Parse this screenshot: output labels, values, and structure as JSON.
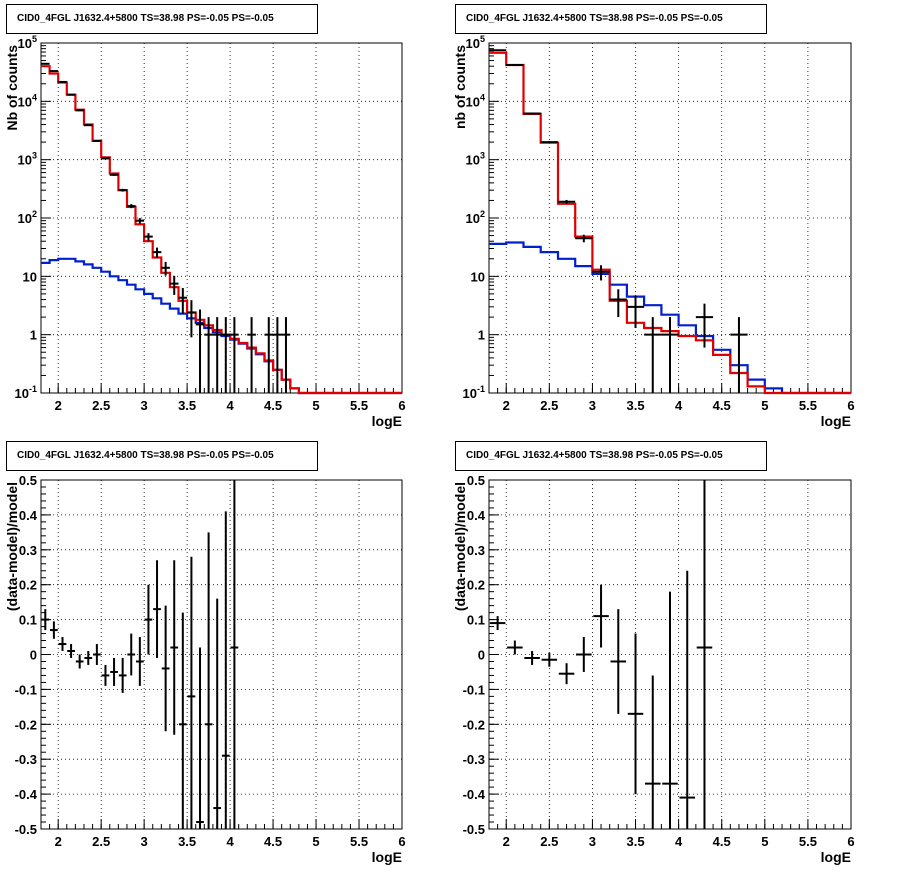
{
  "colors": {
    "data": "#000000",
    "total_model": "#e00000",
    "background_model": "#0020d0",
    "grid": "#000000"
  },
  "chart_data": [
    {
      "type": "line",
      "title": "CID0_4FGL J1632.4+5800 TS=38.98 PS=-0.05 PS=-0.05",
      "xlabel": "logE",
      "ylabel": "Nb of counts",
      "yscale": "log",
      "xlim": [
        1.8,
        6.0
      ],
      "ylim": [
        0.1,
        100000
      ],
      "xticks": [
        "2",
        "2.5",
        "3",
        "3.5",
        "4",
        "4.5",
        "5",
        "5.5",
        "6"
      ],
      "yticks": [
        "10^-1",
        "1",
        "10",
        "10^2",
        "10^3",
        "10^4",
        "10^5"
      ],
      "grid": true,
      "bin_width": 0.1,
      "series": [
        {
          "values_x": [
            1.85,
            1.95,
            2.05,
            2.15,
            2.25,
            2.35,
            2.45,
            2.55,
            2.65,
            2.75,
            2.85,
            2.95,
            3.05,
            3.15,
            3.25,
            3.35,
            3.45,
            3.55,
            3.65,
            3.75,
            3.85,
            3.95,
            4.05,
            4.15,
            4.25,
            4.35,
            4.45,
            4.55,
            4.65,
            4.75,
            4.85,
            4.95,
            5.05,
            5.15,
            5.25,
            5.35,
            5.45,
            5.55,
            5.65,
            5.75,
            5.85,
            5.95
          ],
          "values": [
            40000,
            30000,
            21000,
            13000,
            7200,
            4000,
            2100,
            1100,
            580,
            300,
            155,
            78,
            40,
            21,
            11.5,
            6.5,
            3.8,
            2.4,
            1.8,
            1.45,
            1.2,
            1.0,
            0.85,
            0.72,
            0.6,
            0.48,
            0.36,
            0.25,
            0.17,
            0.12,
            0.1,
            0.1,
            0.1,
            0.1,
            0.1,
            0.1,
            0.1,
            0.1,
            0.1,
            0.1,
            0.1,
            0.1
          ]
        },
        {
          "values_x": [
            1.85,
            1.95,
            2.05,
            2.15,
            2.25,
            2.35,
            2.45,
            2.55,
            2.65,
            2.75,
            2.85,
            2.95,
            3.05,
            3.15,
            3.25,
            3.35,
            3.45,
            3.55,
            3.65,
            3.75,
            3.85,
            3.95,
            4.05,
            4.15,
            4.25,
            4.35,
            4.45,
            4.55,
            4.65,
            4.75,
            4.85,
            4.95,
            5.05,
            5.15,
            5.25,
            5.35,
            5.45,
            5.55,
            5.65,
            5.75,
            5.85,
            5.95
          ],
          "values": [
            17,
            19,
            20,
            20,
            18,
            16,
            14,
            12,
            10,
            8.6,
            7.2,
            6.0,
            5.0,
            4.2,
            3.4,
            2.8,
            2.3,
            1.9,
            1.6,
            1.3,
            1.1,
            0.95,
            0.82,
            0.7,
            0.58,
            0.46,
            0.35,
            0.25,
            0.17,
            0.12,
            0.1,
            0.1,
            0.1,
            0.1,
            0.1,
            0.1,
            0.1,
            0.1,
            0.1,
            0.1,
            0.1,
            0.1
          ]
        },
        {
          "values_x": [
            1.85,
            1.95,
            2.05,
            2.15,
            2.25,
            2.35,
            2.45,
            2.55,
            2.65,
            2.75,
            2.85,
            2.95,
            3.05,
            3.15,
            3.25,
            3.35,
            3.45,
            3.55,
            3.65,
            3.75,
            3.85,
            3.95,
            4.05,
            4.25,
            4.45,
            4.55,
            4.65
          ],
          "values": [
            44000,
            33000,
            21500,
            13000,
            7000,
            3900,
            2100,
            1050,
            550,
            300,
            160,
            90,
            48,
            26,
            14,
            7.5,
            4.3,
            2.4,
            1.5,
            1,
            1,
            1,
            1,
            1,
            1,
            1,
            1
          ],
          "errors_low": [
            210,
            180,
            145,
            115,
            84,
            62,
            46,
            32,
            23,
            17,
            12.6,
            9.5,
            7,
            5.1,
            3.7,
            2.7,
            2.0,
            1.5,
            1.5,
            1,
            1,
            1,
            1,
            1,
            1,
            1,
            1
          ],
          "errors_high": [
            210,
            180,
            145,
            115,
            84,
            62,
            46,
            32,
            23,
            17,
            12.6,
            9.5,
            7,
            5.1,
            3.7,
            2.7,
            2.0,
            1.5,
            1.2,
            1,
            1,
            1,
            1,
            1,
            1,
            1,
            1
          ]
        }
      ]
    },
    {
      "type": "line",
      "title": "CID0_4FGL J1632.4+5800 TS=38.98 PS=-0.05 PS=-0.05",
      "xlabel": "logE",
      "ylabel": "nb of counts",
      "yscale": "log",
      "xlim": [
        1.8,
        6.0
      ],
      "ylim": [
        0.1,
        100000
      ],
      "xticks": [
        "2",
        "2.5",
        "3",
        "3.5",
        "4",
        "4.5",
        "5",
        "5.5",
        "6"
      ],
      "yticks": [
        "10^-1",
        "1",
        "10",
        "10^2",
        "10^3",
        "10^4",
        "10^5"
      ],
      "grid": true,
      "bin_width": 0.2,
      "series": [
        {
          "values_x": [
            1.9,
            2.1,
            2.3,
            2.5,
            2.7,
            2.9,
            3.1,
            3.3,
            3.5,
            3.7,
            3.9,
            4.1,
            4.3,
            4.5,
            4.7,
            4.9,
            5.1,
            5.3,
            5.5,
            5.7,
            5.9
          ],
          "values": [
            68000,
            42000,
            6100,
            1950,
            175,
            48,
            13,
            3.8,
            1.6,
            1.3,
            1.15,
            0.95,
            0.8,
            0.45,
            0.22,
            0.13,
            0.1,
            0.1,
            0.1,
            0.1,
            0.1
          ]
        },
        {
          "values_x": [
            1.9,
            2.1,
            2.3,
            2.5,
            2.7,
            2.9,
            3.1,
            3.3,
            3.5,
            3.7,
            3.9,
            4.1,
            4.3,
            4.5,
            4.7,
            4.9,
            5.1,
            5.3,
            5.5,
            5.7,
            5.9
          ],
          "values": [
            36,
            38,
            32,
            26,
            20,
            15,
            11,
            7.2,
            4.5,
            3.2,
            2.2,
            1.45,
            0.95,
            0.55,
            0.3,
            0.17,
            0.12,
            0.1,
            0.1,
            0.1,
            0.1
          ]
        },
        {
          "values_x": [
            1.9,
            2.1,
            2.3,
            2.5,
            2.7,
            2.9,
            3.1,
            3.3,
            3.5,
            3.7,
            3.9,
            4.3,
            4.7
          ],
          "values": [
            75000,
            42000,
            6200,
            2000,
            190,
            45,
            12,
            4,
            3,
            1,
            1,
            2,
            1
          ],
          "errors_low": [
            270,
            210,
            80,
            45,
            14,
            6.7,
            3.5,
            2,
            1.7,
            1,
            1,
            1.4,
            1
          ],
          "errors_high": [
            270,
            210,
            80,
            45,
            14,
            6.7,
            3.5,
            2,
            1.7,
            1,
            1,
            1.4,
            1
          ]
        }
      ]
    },
    {
      "type": "scatter",
      "title": "CID0_4FGL J1632.4+5800 TS=38.98 PS=-0.05 PS=-0.05",
      "xlabel": "logE",
      "ylabel": "(data-model)/model",
      "xlim": [
        1.8,
        6.0
      ],
      "ylim": [
        -0.5,
        0.5
      ],
      "xticks": [
        "2",
        "2.5",
        "3",
        "3.5",
        "4",
        "4.5",
        "5",
        "5.5",
        "6"
      ],
      "yticks": [
        "-0.5",
        "-0.4",
        "-0.3",
        "-0.2",
        "-0.1",
        "0",
        "0.1",
        "0.2",
        "0.3",
        "0.4",
        "0.5"
      ],
      "grid": true,
      "bin_width": 0.1,
      "series": [
        {
          "values_x": [
            1.85,
            1.95,
            2.05,
            2.15,
            2.25,
            2.35,
            2.45,
            2.55,
            2.65,
            2.75,
            2.85,
            2.95,
            3.05,
            3.15,
            3.25,
            3.35,
            3.45,
            3.55,
            3.65,
            3.75,
            3.85,
            3.95,
            4.05
          ],
          "values": [
            0.1,
            0.07,
            0.03,
            0.01,
            -0.02,
            -0.01,
            0.0,
            -0.06,
            -0.05,
            -0.06,
            0.0,
            -0.02,
            0.1,
            0.13,
            -0.04,
            0.02,
            -0.2,
            -0.12,
            -0.48,
            -0.2,
            -0.44,
            -0.29,
            0.02
          ],
          "errors": [
            0.03,
            0.025,
            0.02,
            0.02,
            0.02,
            0.02,
            0.03,
            0.03,
            0.04,
            0.05,
            0.06,
            0.07,
            0.1,
            0.14,
            0.18,
            0.25,
            0.32,
            0.4,
            0.5,
            0.55,
            0.6,
            0.7,
            0.9
          ]
        }
      ]
    },
    {
      "type": "scatter",
      "title": "CID0_4FGL J1632.4+5800 TS=38.98 PS=-0.05 PS=-0.05",
      "xlabel": "logE",
      "ylabel": "(data-model)/model",
      "xlim": [
        1.8,
        6.0
      ],
      "ylim": [
        -0.5,
        0.5
      ],
      "xticks": [
        "2",
        "2.5",
        "3",
        "3.5",
        "4",
        "4.5",
        "5",
        "5.5",
        "6"
      ],
      "yticks": [
        "-0.5",
        "-0.4",
        "-0.3",
        "-0.2",
        "-0.1",
        "0",
        "0.1",
        "0.2",
        "0.3",
        "0.4",
        "0.5"
      ],
      "grid": true,
      "bin_width": 0.2,
      "series": [
        {
          "values_x": [
            1.9,
            2.1,
            2.3,
            2.5,
            2.7,
            2.9,
            3.1,
            3.3,
            3.5,
            3.7,
            3.9,
            4.1,
            4.3
          ],
          "values": [
            0.09,
            0.02,
            -0.01,
            -0.015,
            -0.055,
            0.0,
            0.11,
            -0.02,
            -0.17,
            -0.37,
            -0.37,
            -0.41,
            0.02
          ],
          "errors": [
            0.02,
            0.02,
            0.02,
            0.02,
            0.03,
            0.05,
            0.09,
            0.15,
            0.23,
            0.31,
            0.55,
            0.65,
            1.0
          ]
        }
      ]
    }
  ]
}
